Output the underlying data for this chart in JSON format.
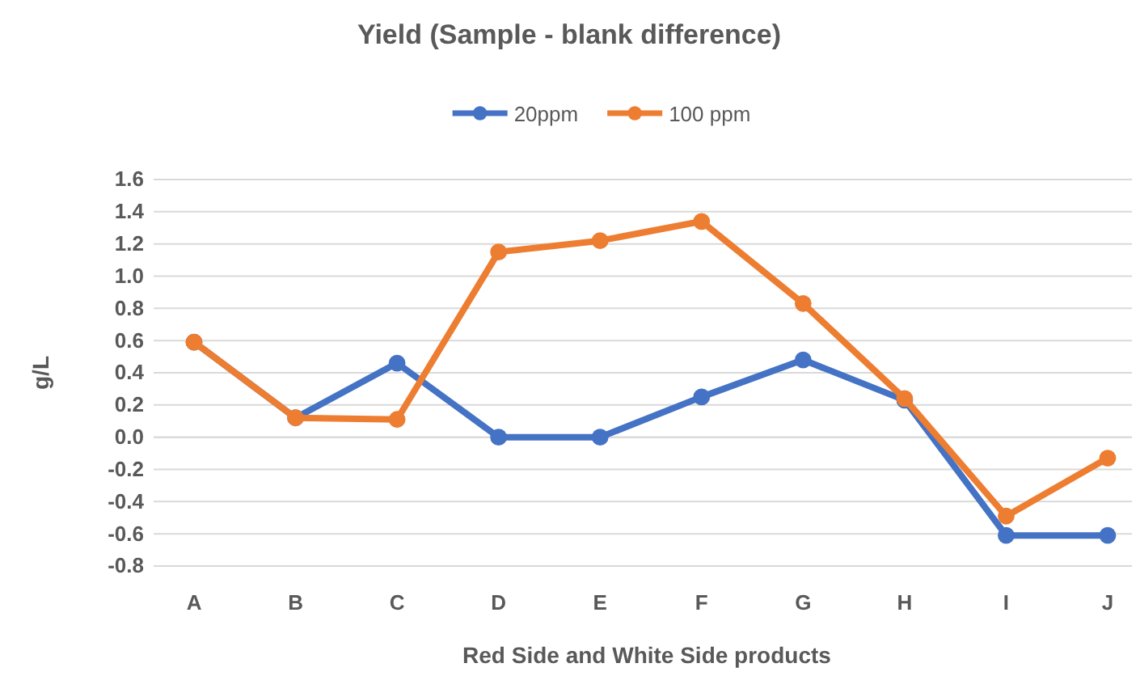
{
  "chart_data": {
    "type": "line",
    "title": "Yield  (Sample - blank difference)",
    "xlabel": "Red Side and White Side products",
    "ylabel": "g/L",
    "categories": [
      "A",
      "B",
      "C",
      "D",
      "E",
      "F",
      "G",
      "H",
      "I",
      "J"
    ],
    "series": [
      {
        "name": "20ppm",
        "color": "#4472c4",
        "values": [
          0.59,
          0.12,
          0.46,
          0,
          0,
          0.25,
          0.48,
          0.23,
          -0.61,
          -0.61
        ]
      },
      {
        "name": "100 ppm",
        "color": "#ed7d31",
        "values": [
          0.59,
          0.12,
          0.11,
          1.15,
          1.22,
          1.34,
          0.83,
          0.24,
          -0.49,
          -0.13
        ]
      }
    ],
    "ylim": [
      -0.8,
      1.6
    ],
    "yticks": [
      {
        "value": -0.8,
        "label": "-0.8"
      },
      {
        "value": -0.6,
        "label": "-0.6"
      },
      {
        "value": -0.4,
        "label": "-0.4"
      },
      {
        "value": -0.2,
        "label": "-0.2"
      },
      {
        "value": 0,
        "label": "0.0"
      },
      {
        "value": 0.2,
        "label": "0.2"
      },
      {
        "value": 0.4,
        "label": "0.4"
      },
      {
        "value": 0.6,
        "label": "0.6"
      },
      {
        "value": 0.8,
        "label": "0.8"
      },
      {
        "value": 1,
        "label": "1.0"
      },
      {
        "value": 1.2,
        "label": "1.2"
      },
      {
        "value": 1.4,
        "label": "1.4"
      },
      {
        "value": 1.6,
        "label": "1.6"
      }
    ],
    "grid": "y",
    "legend": "top",
    "marker": "circle",
    "line_style": "solid"
  }
}
